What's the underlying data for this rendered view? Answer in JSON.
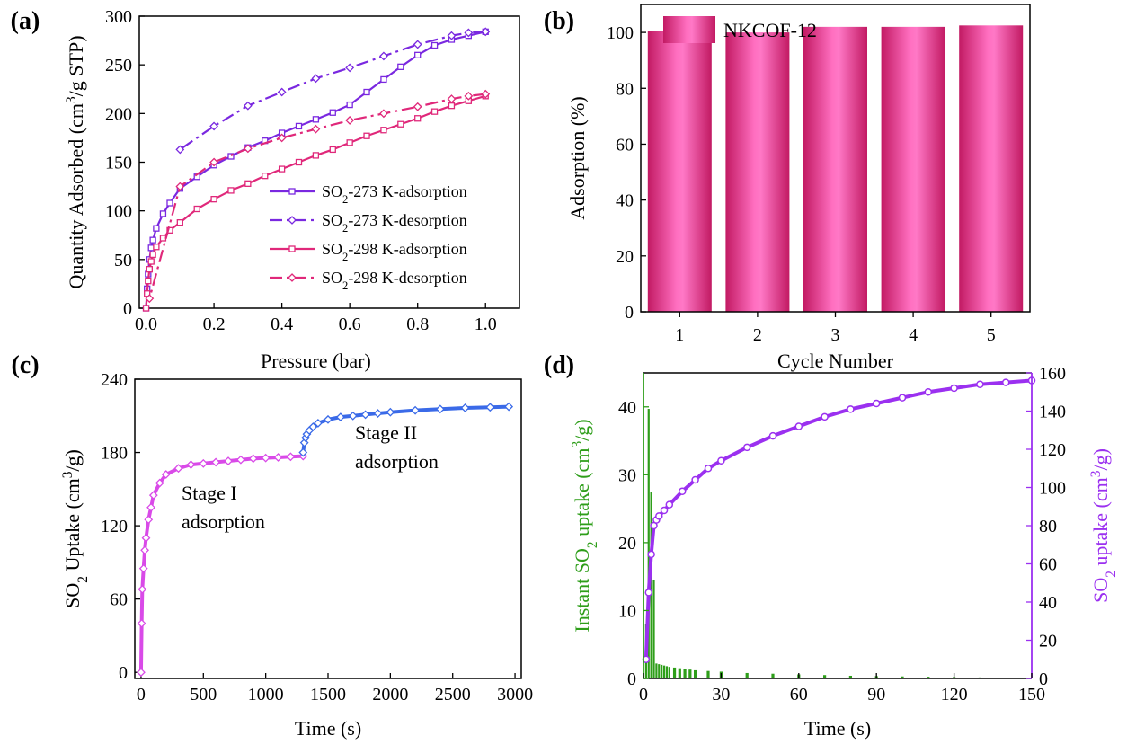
{
  "chart_data": [
    {
      "panel_label": "(a)",
      "type": "line",
      "xlabel": "Pressure (bar)",
      "ylabel_parts": [
        "Quantity Adsorbed (cm",
        "3",
        "/g STP)"
      ],
      "xlim": [
        -0.02,
        1.1
      ],
      "ylim": [
        0,
        300
      ],
      "xticks": [
        "0.0",
        "0.2",
        "0.4",
        "0.6",
        "0.8",
        "1.0"
      ],
      "yticks": [
        "0",
        "50",
        "100",
        "150",
        "200",
        "250",
        "300"
      ],
      "legend_position": "bottom-right",
      "series": [
        {
          "name_parts": [
            "SO",
            "2",
            "-273 K-adsorption"
          ],
          "color": "#7a28e0",
          "dashed": false,
          "marker": "square",
          "x": [
            0.0,
            0.003,
            0.006,
            0.01,
            0.015,
            0.02,
            0.03,
            0.05,
            0.07,
            0.1,
            0.15,
            0.2,
            0.25,
            0.3,
            0.35,
            0.4,
            0.45,
            0.5,
            0.55,
            0.6,
            0.65,
            0.7,
            0.75,
            0.8,
            0.85,
            0.9,
            0.95,
            1.0
          ],
          "y": [
            0,
            20,
            35,
            50,
            62,
            70,
            82,
            97,
            108,
            123,
            135,
            147,
            156,
            165,
            172,
            180,
            187,
            194,
            201,
            209,
            222,
            235,
            248,
            260,
            270,
            276,
            280,
            284
          ]
        },
        {
          "name_parts": [
            "SO",
            "2",
            "-273 K-desorption"
          ],
          "color": "#7a28e0",
          "dashed": true,
          "marker": "diamond",
          "x": [
            1.0,
            0.95,
            0.9,
            0.8,
            0.7,
            0.6,
            0.5,
            0.4,
            0.3,
            0.2,
            0.1
          ],
          "y": [
            284,
            283,
            280,
            271,
            259,
            247,
            236,
            222,
            208,
            187,
            163
          ]
        },
        {
          "name_parts": [
            "SO",
            "2",
            "-298 K-adsorption"
          ],
          "color": "#e0287a",
          "dashed": false,
          "marker": "square",
          "x": [
            0.0,
            0.003,
            0.006,
            0.01,
            0.015,
            0.02,
            0.03,
            0.05,
            0.07,
            0.1,
            0.15,
            0.2,
            0.25,
            0.3,
            0.35,
            0.4,
            0.45,
            0.5,
            0.55,
            0.6,
            0.65,
            0.7,
            0.75,
            0.8,
            0.85,
            0.9,
            0.95,
            1.0
          ],
          "y": [
            0,
            15,
            28,
            40,
            48,
            55,
            63,
            72,
            80,
            88,
            102,
            112,
            121,
            128,
            136,
            143,
            150,
            157,
            163,
            170,
            177,
            183,
            189,
            195,
            202,
            208,
            213,
            218
          ]
        },
        {
          "name_parts": [
            "SO",
            "2",
            "-298 K-desorption"
          ],
          "color": "#e0287a",
          "dashed": true,
          "marker": "diamond",
          "x": [
            1.0,
            0.95,
            0.9,
            0.8,
            0.7,
            0.6,
            0.5,
            0.4,
            0.3,
            0.2,
            0.1,
            0.01
          ],
          "y": [
            220,
            218,
            215,
            207,
            200,
            193,
            184,
            175,
            164,
            150,
            125,
            10
          ]
        }
      ]
    },
    {
      "panel_label": "(b)",
      "type": "bar",
      "xlabel": "Cycle Number",
      "ylabel": "Adsorption (%)",
      "ylim": [
        0,
        110
      ],
      "yticks": [
        "0",
        "20",
        "40",
        "60",
        "80",
        "100"
      ],
      "categories": [
        "1",
        "2",
        "3",
        "4",
        "5"
      ],
      "series": [
        {
          "name": "NKCOF-12",
          "values": [
            100.5,
            100,
            102,
            102,
            102.5
          ],
          "color": "#e8509a"
        }
      ],
      "legend_position": "top-left"
    },
    {
      "panel_label": "(c)",
      "type": "scatter",
      "xlabel": "Time (s)",
      "ylabel_parts": [
        "SO",
        "2",
        " Uptake (cm",
        "3",
        "/g)"
      ],
      "xlim": [
        -50,
        3050
      ],
      "ylim": [
        -5,
        240
      ],
      "xticks": [
        "0",
        "500",
        "1000",
        "1500",
        "2000",
        "2500",
        "3000"
      ],
      "yticks": [
        "0",
        "60",
        "120",
        "180",
        "240"
      ],
      "annotations": [
        {
          "lines": [
            "Stage I",
            "adsorption"
          ],
          "color": "#d33ee8"
        },
        {
          "lines": [
            "Stage II",
            "adsorption"
          ],
          "color": "#3a5de8"
        }
      ],
      "series": [
        {
          "name": "Stage I adsorption",
          "color": "#d94ae8",
          "x": [
            0,
            5,
            10,
            20,
            30,
            40,
            60,
            80,
            100,
            150,
            200,
            300,
            400,
            500,
            600,
            700,
            800,
            900,
            1000,
            1100,
            1200,
            1300
          ],
          "y": [
            0,
            40,
            68,
            85,
            100,
            110,
            125,
            135,
            145,
            155,
            162,
            167,
            170,
            171,
            172,
            173,
            174,
            175,
            175.5,
            176,
            176.5,
            177
          ]
        },
        {
          "name": "Stage II adsorption",
          "color": "#3a6ae8",
          "x": [
            1300,
            1310,
            1320,
            1330,
            1350,
            1380,
            1420,
            1500,
            1600,
            1700,
            1800,
            1900,
            2000,
            2200,
            2400,
            2600,
            2800,
            2950
          ],
          "y": [
            180,
            188,
            192,
            195,
            198,
            201,
            204,
            207,
            209,
            210,
            211,
            212,
            213,
            214.5,
            215.5,
            216.5,
            217,
            217.5
          ]
        }
      ]
    },
    {
      "panel_label": "(d)",
      "type": "bar",
      "xlabel": "Time (s)",
      "ylabel_left_parts": [
        "Instant SO",
        "2",
        " uptake (cm",
        "3",
        "/g)"
      ],
      "ylabel_right_parts": [
        "SO",
        "2",
        " uptake (cm",
        "3",
        "/g)"
      ],
      "xlim": [
        0,
        150
      ],
      "ylim_left": [
        0,
        45
      ],
      "ylim_right": [
        0,
        160
      ],
      "xticks": [
        "0",
        "30",
        "60",
        "90",
        "120",
        "150"
      ],
      "yticks_left": [
        "0",
        "10",
        "20",
        "30",
        "40"
      ],
      "yticks_right": [
        "0",
        "20",
        "40",
        "60",
        "80",
        "100",
        "120",
        "140",
        "160"
      ],
      "colors": {
        "left": "#2e9e1a",
        "right": "#9b30f0"
      },
      "series": [
        {
          "name": "Instant SO2 uptake",
          "axis": "left",
          "type": "bar",
          "x": [
            1,
            2,
            3,
            4,
            5,
            6,
            7,
            8,
            9,
            10,
            12,
            14,
            16,
            18,
            20,
            25,
            30,
            40,
            50,
            60,
            70,
            80,
            90,
            100,
            110,
            120,
            130,
            140,
            150
          ],
          "y": [
            8,
            39.7,
            27.5,
            14.5,
            2.2,
            2.1,
            2.0,
            1.9,
            1.8,
            1.7,
            1.6,
            1.5,
            1.4,
            1.3,
            1.2,
            1.1,
            1.0,
            0.8,
            0.7,
            0.6,
            0.5,
            0.4,
            0.35,
            0.3,
            0.25,
            0.2,
            0.15,
            0.12,
            0.1
          ]
        },
        {
          "name": "SO2 uptake",
          "axis": "right",
          "type": "scatter",
          "x": [
            1,
            2,
            3,
            4,
            5,
            6,
            8,
            10,
            15,
            20,
            25,
            30,
            40,
            50,
            60,
            70,
            80,
            90,
            100,
            110,
            120,
            130,
            140,
            150
          ],
          "y": [
            10,
            45,
            65,
            80,
            83,
            85,
            88,
            91,
            98,
            104,
            110,
            114,
            121,
            127,
            132,
            137,
            141,
            144,
            147,
            150,
            152,
            154,
            155,
            156
          ]
        }
      ]
    }
  ]
}
